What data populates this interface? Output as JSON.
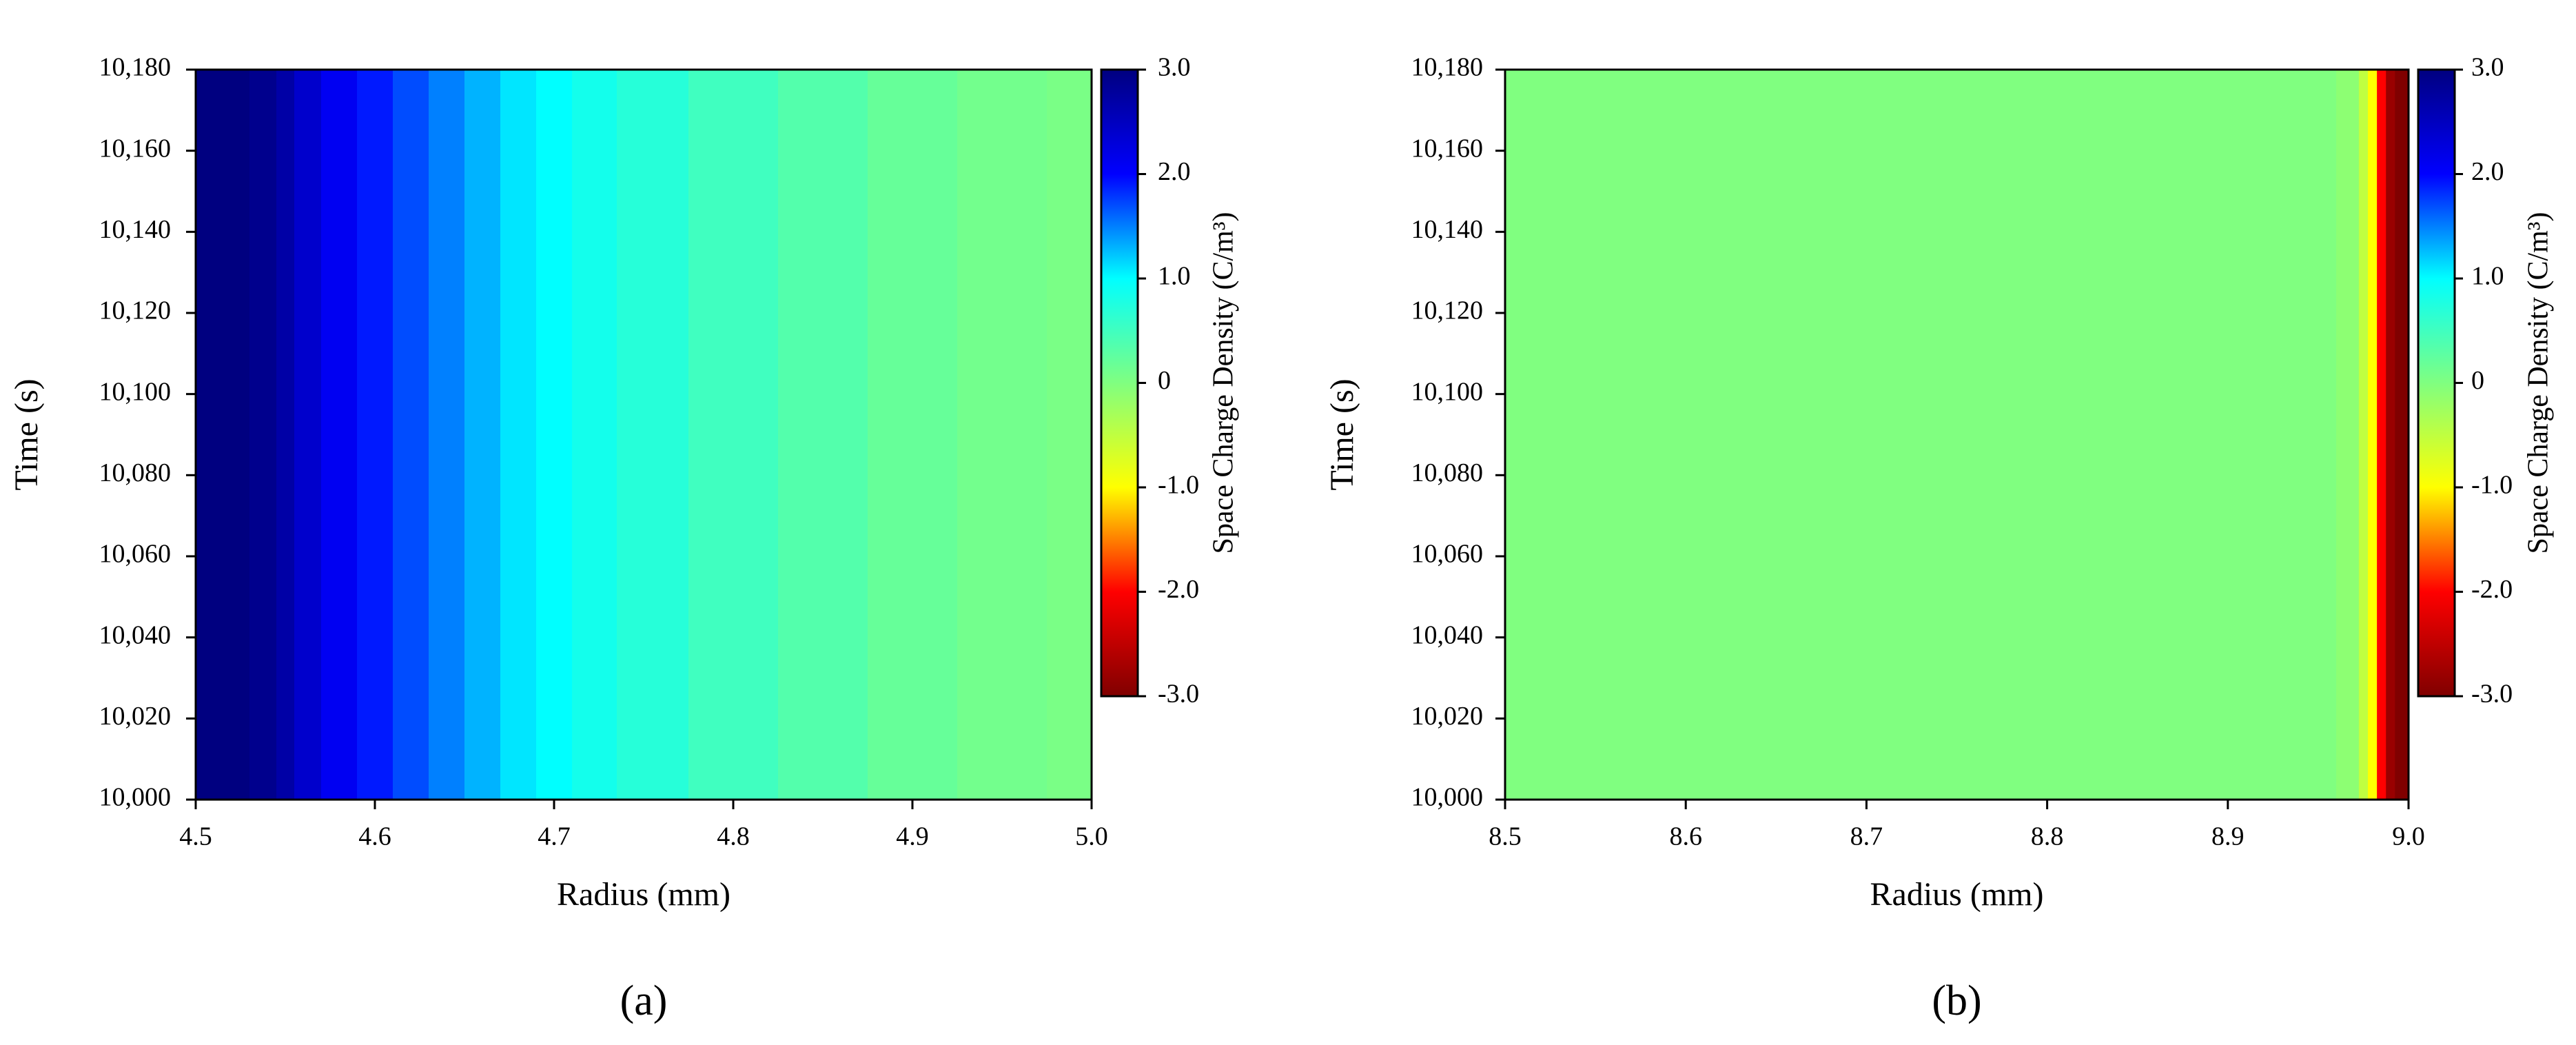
{
  "chart_data": [
    {
      "type": "heatmap",
      "panel_label": "(a)",
      "xlabel": "Radius (mm)",
      "ylabel": "Time (s)",
      "x": [
        4.5,
        4.52,
        4.54,
        4.55,
        4.56,
        4.58,
        4.6,
        4.62,
        4.64,
        4.66,
        4.68,
        4.7,
        4.72,
        4.75,
        4.8,
        4.85,
        4.9,
        4.95,
        5.0
      ],
      "values": [
        3.0,
        3.0,
        2.9,
        2.7,
        2.4,
        2.1,
        1.9,
        1.7,
        1.5,
        1.3,
        1.1,
        1.0,
        0.85,
        0.7,
        0.5,
        0.35,
        0.2,
        0.1,
        0.05
      ],
      "xlim": [
        4.5,
        5.0
      ],
      "xticks": [
        4.5,
        4.6,
        4.7,
        4.8,
        4.9,
        {
          "value": 5,
          "label": "5.0"
        }
      ],
      "ylim": [
        10000,
        10180
      ],
      "yticks": [
        {
          "value": 10000,
          "label": "10,000"
        },
        {
          "value": 10020,
          "label": "10,020"
        },
        {
          "value": 10040,
          "label": "10,040"
        },
        {
          "value": 10060,
          "label": "10,060"
        },
        {
          "value": 10080,
          "label": "10,080"
        },
        {
          "value": 10100,
          "label": "10,100"
        },
        {
          "value": 10120,
          "label": "10,120"
        },
        {
          "value": 10140,
          "label": "10,140"
        },
        {
          "value": 10160,
          "label": "10,160"
        },
        {
          "value": 10180,
          "label": "10,180"
        }
      ],
      "colorbar": {
        "label": "Space Charge Density (C/m³)",
        "lim": [
          -3,
          3
        ],
        "ticks": [
          {
            "value": 3,
            "label": "3.0"
          },
          {
            "value": 2,
            "label": "2.0"
          },
          {
            "value": 1,
            "label": "1.0"
          },
          0,
          {
            "value": -1,
            "label": "-1.0"
          },
          {
            "value": -2,
            "label": "-2.0"
          },
          {
            "value": -3,
            "label": "-3.0"
          }
        ],
        "colormap": [
          "#800000",
          "#ff0000",
          "#ffff00",
          "#80ff80",
          "#00ffff",
          "#0000ff",
          "#000080"
        ]
      }
    },
    {
      "type": "heatmap",
      "panel_label": "(b)",
      "xlabel": "Radius (mm)",
      "ylabel": "Time (s)",
      "x": [
        8.5,
        8.6,
        8.7,
        8.8,
        8.9,
        8.95,
        8.97,
        8.975,
        8.98,
        8.985,
        8.99,
        8.995,
        9.0
      ],
      "values": [
        0,
        0,
        0,
        0,
        0,
        0,
        -0.1,
        -0.5,
        -1.0,
        -2.0,
        -2.8,
        -3.0,
        -3.0
      ],
      "xlim": [
        8.5,
        9.0
      ],
      "xticks": [
        8.5,
        8.6,
        8.7,
        8.8,
        8.9,
        {
          "value": 9,
          "label": "9.0"
        }
      ],
      "ylim": [
        10000,
        10180
      ],
      "yticks": [
        {
          "value": 10000,
          "label": "10,000"
        },
        {
          "value": 10020,
          "label": "10,020"
        },
        {
          "value": 10040,
          "label": "10,040"
        },
        {
          "value": 10060,
          "label": "10,060"
        },
        {
          "value": 10080,
          "label": "10,080"
        },
        {
          "value": 10100,
          "label": "10,100"
        },
        {
          "value": 10120,
          "label": "10,120"
        },
        {
          "value": 10140,
          "label": "10,140"
        },
        {
          "value": 10160,
          "label": "10,160"
        },
        {
          "value": 10180,
          "label": "10,180"
        }
      ],
      "colorbar": {
        "label": "Space Charge Density (C/m³)",
        "lim": [
          -3,
          3
        ],
        "ticks": [
          {
            "value": 3,
            "label": "3.0"
          },
          {
            "value": 2,
            "label": "2.0"
          },
          {
            "value": 1,
            "label": "1.0"
          },
          0,
          {
            "value": -1,
            "label": "-1.0"
          },
          {
            "value": -2,
            "label": "-2.0"
          },
          {
            "value": -3,
            "label": "-3.0"
          }
        ],
        "colormap": [
          "#800000",
          "#ff0000",
          "#ffff00",
          "#80ff80",
          "#00ffff",
          "#0000ff",
          "#000080"
        ]
      }
    }
  ]
}
